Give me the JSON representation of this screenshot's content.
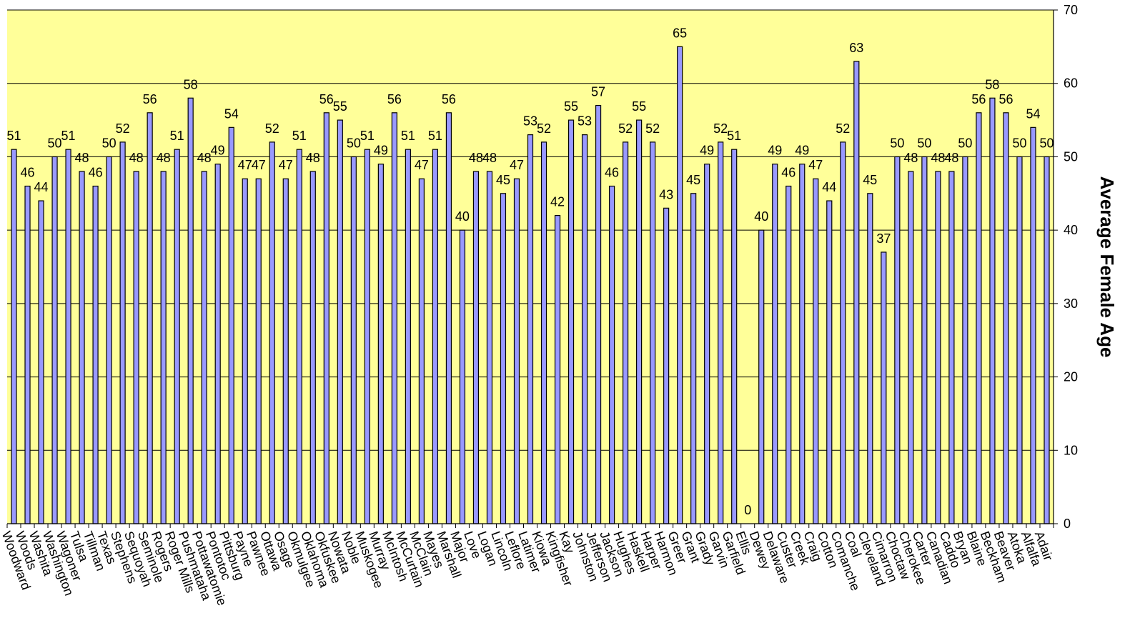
{
  "chart_data": {
    "type": "bar",
    "ylabel": "Average Female Age",
    "ylim": [
      0,
      70
    ],
    "yticks": [
      0,
      10,
      20,
      30,
      40,
      50,
      60,
      70
    ],
    "y_axis_position": "right",
    "grid": true,
    "legend": "none",
    "data_labels": true,
    "categories": [
      "Woodward",
      "Woods",
      "Washita",
      "Washington",
      "Wagoner",
      "Tulsa",
      "Tillman",
      "Texas",
      "Stephens",
      "Sequoyah",
      "Seminole",
      "Rogers",
      "Roger Mills",
      "Pushmataha",
      "Pottawatomie",
      "Pontotoc",
      "Pittsburg",
      "Payne",
      "Pawnee",
      "Ottawa",
      "Osage",
      "Okmulgee",
      "Oklahoma",
      "Okfuskee",
      "Nowata",
      "Noble",
      "Muskogee",
      "Murray",
      "McIntosh",
      "McCurtain",
      "McClain",
      "Mayes",
      "Marshall",
      "Major",
      "Love",
      "Logan",
      "Lincoln",
      "Leflore",
      "Latimer",
      "Kiowa",
      "Kingfisher",
      "Kay",
      "Johnston",
      "Jefferson",
      "Jackson",
      "Hughes",
      "Haskell",
      "Harper",
      "Harmon",
      "Greer",
      "Grant",
      "Grady",
      "Garvin",
      "Garfield",
      "Ellis",
      "Dewey",
      "Delaware",
      "Custer",
      "Creek",
      "Craig",
      "Cotton",
      "Comanche",
      "Coal",
      "Cleveland",
      "Cimarron",
      "Choctaw",
      "Cherokee",
      "Carter",
      "Canadian",
      "Caddo",
      "Bryan",
      "Blaine",
      "Beckham",
      "Beaver",
      "Atoka",
      "Alfalfa",
      "Adair"
    ],
    "values": [
      51,
      46,
      44,
      50,
      51,
      48,
      46,
      50,
      52,
      48,
      56,
      48,
      51,
      58,
      48,
      49,
      54,
      47,
      47,
      52,
      47,
      51,
      48,
      56,
      55,
      50,
      51,
      49,
      56,
      51,
      47,
      51,
      56,
      40,
      48,
      48,
      45,
      47,
      53,
      52,
      42,
      55,
      53,
      57,
      46,
      52,
      55,
      52,
      43,
      65,
      45,
      49,
      52,
      51,
      0,
      40,
      49,
      46,
      49,
      47,
      44,
      52,
      63,
      45,
      37,
      50,
      48,
      50,
      48,
      48,
      50,
      56,
      58,
      56,
      50,
      54,
      50
    ],
    "colors": {
      "plot_background": "#FFFF99",
      "bar_fill": "#9999FF",
      "bar_stroke": "#000000",
      "gridline": "#000000"
    }
  }
}
